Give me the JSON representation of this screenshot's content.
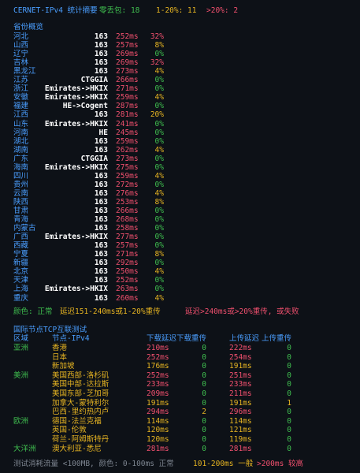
{
  "header": {
    "title": "CERNET-IPv4 统计摘要",
    "zero_loss": "零丢包: 18",
    "low_loss": "1-20%: 11",
    "high_loss": ">20%: 2"
  },
  "provinces": {
    "title": "省份概览",
    "rows": [
      [
        "河北",
        "163",
        "252ms",
        "32%"
      ],
      [
        "山西",
        "163",
        "257ms",
        "8%"
      ],
      [
        "辽宁",
        "163",
        "269ms",
        "0%"
      ],
      [
        "吉林",
        "163",
        "269ms",
        "32%"
      ],
      [
        "黑龙江",
        "163",
        "273ms",
        "4%"
      ],
      [
        "江苏",
        "CTGGIA",
        "266ms",
        "0%"
      ],
      [
        "浙江",
        "Emirates->HKIX",
        "271ms",
        "0%"
      ],
      [
        "安徽",
        "Emirates->HKIX",
        "259ms",
        "4%"
      ],
      [
        "福建",
        "HE->Cogent",
        "287ms",
        "0%"
      ],
      [
        "江西",
        "163",
        "281ms",
        "20%"
      ],
      [
        "山东",
        "Emirates->HKIX",
        "241ms",
        "0%"
      ],
      [
        "河南",
        "HE",
        "245ms",
        "0%"
      ],
      [
        "湖北",
        "163",
        "259ms",
        "0%"
      ],
      [
        "湖南",
        "163",
        "262ms",
        "4%"
      ],
      [
        "广东",
        "CTGGIA",
        "273ms",
        "0%"
      ],
      [
        "海南",
        "Emirates->HKIX",
        "275ms",
        "0%"
      ],
      [
        "四川",
        "163",
        "259ms",
        "4%"
      ],
      [
        "贵州",
        "163",
        "272ms",
        "0%"
      ],
      [
        "云南",
        "163",
        "276ms",
        "4%"
      ],
      [
        "陕西",
        "163",
        "253ms",
        "8%"
      ],
      [
        "甘肃",
        "163",
        "266ms",
        "0%"
      ],
      [
        "青海",
        "163",
        "268ms",
        "0%"
      ],
      [
        "内蒙古",
        "163",
        "258ms",
        "0%"
      ],
      [
        "广西",
        "Emirates->HKIX",
        "277ms",
        "0%"
      ],
      [
        "西藏",
        "163",
        "257ms",
        "0%"
      ],
      [
        "宁夏",
        "163",
        "271ms",
        "8%"
      ],
      [
        "新疆",
        "163",
        "292ms",
        "0%"
      ],
      [
        "北京",
        "163",
        "250ms",
        "4%"
      ],
      [
        "天津",
        "163",
        "252ms",
        "0%"
      ],
      [
        "上海",
        "Emirates->HKIX",
        "263ms",
        "0%"
      ],
      [
        "重庆",
        "163",
        "260ms",
        "4%"
      ]
    ]
  },
  "legend": {
    "ok": "颜色: 正常",
    "warn": "延迟151-240ms或1-20%重传",
    "bad": "延迟>240ms或>20%重传, 或失败"
  },
  "international": {
    "title": "国际节点TCP互联测试",
    "columns": [
      "区域",
      "节点-IPv4",
      "下载延迟",
      "下载重传",
      "上传延迟",
      "上传重传"
    ],
    "rows": [
      [
        "亚洲",
        "香港",
        "210ms",
        0,
        "222ms",
        0
      ],
      [
        null,
        "日本",
        "252ms",
        0,
        "254ms",
        0
      ],
      [
        null,
        "新加坡",
        "176ms",
        0,
        "191ms",
        0
      ],
      [
        "美洲",
        "美国西部-洛杉矶",
        "252ms",
        0,
        "251ms",
        0
      ],
      [
        null,
        "美国中部-达拉斯",
        "233ms",
        0,
        "233ms",
        0
      ],
      [
        null,
        "美国东部-芝加哥",
        "209ms",
        0,
        "211ms",
        0
      ],
      [
        null,
        "加拿大-蒙特利尔",
        "191ms",
        0,
        "191ms",
        1
      ],
      [
        null,
        "巴西-里约热内卢",
        "294ms",
        2,
        "296ms",
        0
      ],
      [
        "欧洲",
        "德国-法兰克福",
        "114ms",
        0,
        "114ms",
        0
      ],
      [
        null,
        "英国-伦敦",
        "120ms",
        0,
        "121ms",
        0
      ],
      [
        null,
        "荷兰-阿姆斯特丹",
        "120ms",
        0,
        "119ms",
        0
      ],
      [
        "大洋洲",
        "澳大利亚-悉尼",
        "281ms",
        0,
        "281ms",
        0
      ]
    ]
  },
  "footer": {
    "note": "测试消耗流量 <100MB, 颜色: 0-100ms 正常",
    "mid": "101-200ms 一般",
    "high": ">200ms 较高"
  }
}
